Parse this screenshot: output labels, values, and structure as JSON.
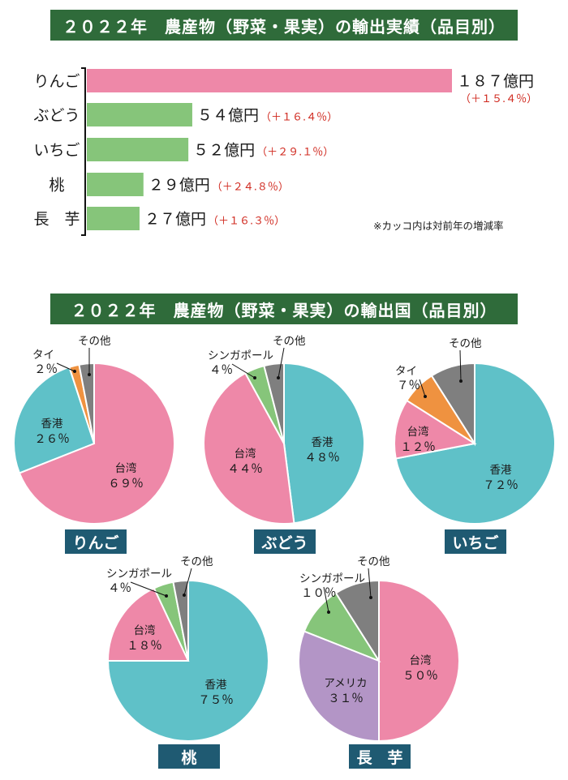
{
  "header1": "２０２２年　農産物（野菜・果実）の輸出実績（品目別）",
  "header2": "２０２２年　農産物（野菜・果実）の輸出国（品目別）",
  "note": "※カッコ内は対前年の増減率",
  "colors": {
    "banner": "#2f6b3a",
    "label_bg": "#1f5a72",
    "bar_main": "#ee88a8",
    "bar_other": "#86c57a",
    "change_text": "#d0281e",
    "taiwan": "#ee88a8",
    "hongkong": "#5fc1c8",
    "singapore": "#86c57a",
    "thailand": "#ef9240",
    "other": "#7f7f7f",
    "america": "#b395c6"
  },
  "chart_data": [
    {
      "type": "bar",
      "orientation": "horizontal",
      "title": "２０２２年　農産物（野菜・果実）の輸出実績（品目別）",
      "categories": [
        "りんご",
        "ぶどう",
        "いちご",
        "桃",
        "長　芋"
      ],
      "values": [
        187,
        54,
        52,
        29,
        27
      ],
      "value_labels": [
        "１８７億円",
        "５４億円",
        "５２億円",
        "２９億円",
        "２７億円"
      ],
      "change_labels": [
        "（＋１５.４％）",
        "（＋１６.４％）",
        "（＋２９.１％）",
        "（＋２４.８％）",
        "（＋１６.３％）"
      ],
      "change_pct": [
        15.4,
        16.4,
        29.1,
        24.8,
        16.3
      ],
      "unit": "億円",
      "note": "※カッコ内は対前年の増減率"
    },
    {
      "type": "pie",
      "title": "りんご",
      "slices": [
        {
          "name": "台湾",
          "value": 69,
          "label": "６９％",
          "color": "#ee88a8"
        },
        {
          "name": "香港",
          "value": 26,
          "label": "２６％",
          "color": "#5fc1c8"
        },
        {
          "name": "タイ",
          "value": 2,
          "label": "２％",
          "color": "#ef9240"
        },
        {
          "name": "その他",
          "value": 3,
          "label": "",
          "color": "#7f7f7f"
        }
      ]
    },
    {
      "type": "pie",
      "title": "ぶどう",
      "slices": [
        {
          "name": "香港",
          "value": 48,
          "label": "４８％",
          "color": "#5fc1c8"
        },
        {
          "name": "台湾",
          "value": 44,
          "label": "４４％",
          "color": "#ee88a8"
        },
        {
          "name": "シンガポール",
          "value": 4,
          "label": "４％",
          "color": "#86c57a"
        },
        {
          "name": "その他",
          "value": 4,
          "label": "",
          "color": "#7f7f7f"
        }
      ]
    },
    {
      "type": "pie",
      "title": "いちご",
      "slices": [
        {
          "name": "香港",
          "value": 72,
          "label": "７２％",
          "color": "#5fc1c8"
        },
        {
          "name": "台湾",
          "value": 12,
          "label": "１２％",
          "color": "#ee88a8"
        },
        {
          "name": "タイ",
          "value": 7,
          "label": "７％",
          "color": "#ef9240"
        },
        {
          "name": "その他",
          "value": 9,
          "label": "",
          "color": "#7f7f7f"
        }
      ]
    },
    {
      "type": "pie",
      "title": "桃",
      "slices": [
        {
          "name": "香港",
          "value": 75,
          "label": "７５％",
          "color": "#5fc1c8"
        },
        {
          "name": "台湾",
          "value": 18,
          "label": "１８％",
          "color": "#ee88a8"
        },
        {
          "name": "シンガポール",
          "value": 4,
          "label": "４％",
          "color": "#86c57a"
        },
        {
          "name": "その他",
          "value": 3,
          "label": "",
          "color": "#7f7f7f"
        }
      ]
    },
    {
      "type": "pie",
      "title": "長　芋",
      "slices": [
        {
          "name": "台湾",
          "value": 50,
          "label": "５０％",
          "color": "#ee88a8"
        },
        {
          "name": "アメリカ",
          "value": 31,
          "label": "３１％",
          "color": "#b395c6"
        },
        {
          "name": "シンガポール",
          "value": 10,
          "label": "１０％",
          "color": "#86c57a"
        },
        {
          "name": "その他",
          "value": 9,
          "label": "",
          "color": "#7f7f7f"
        }
      ]
    }
  ]
}
